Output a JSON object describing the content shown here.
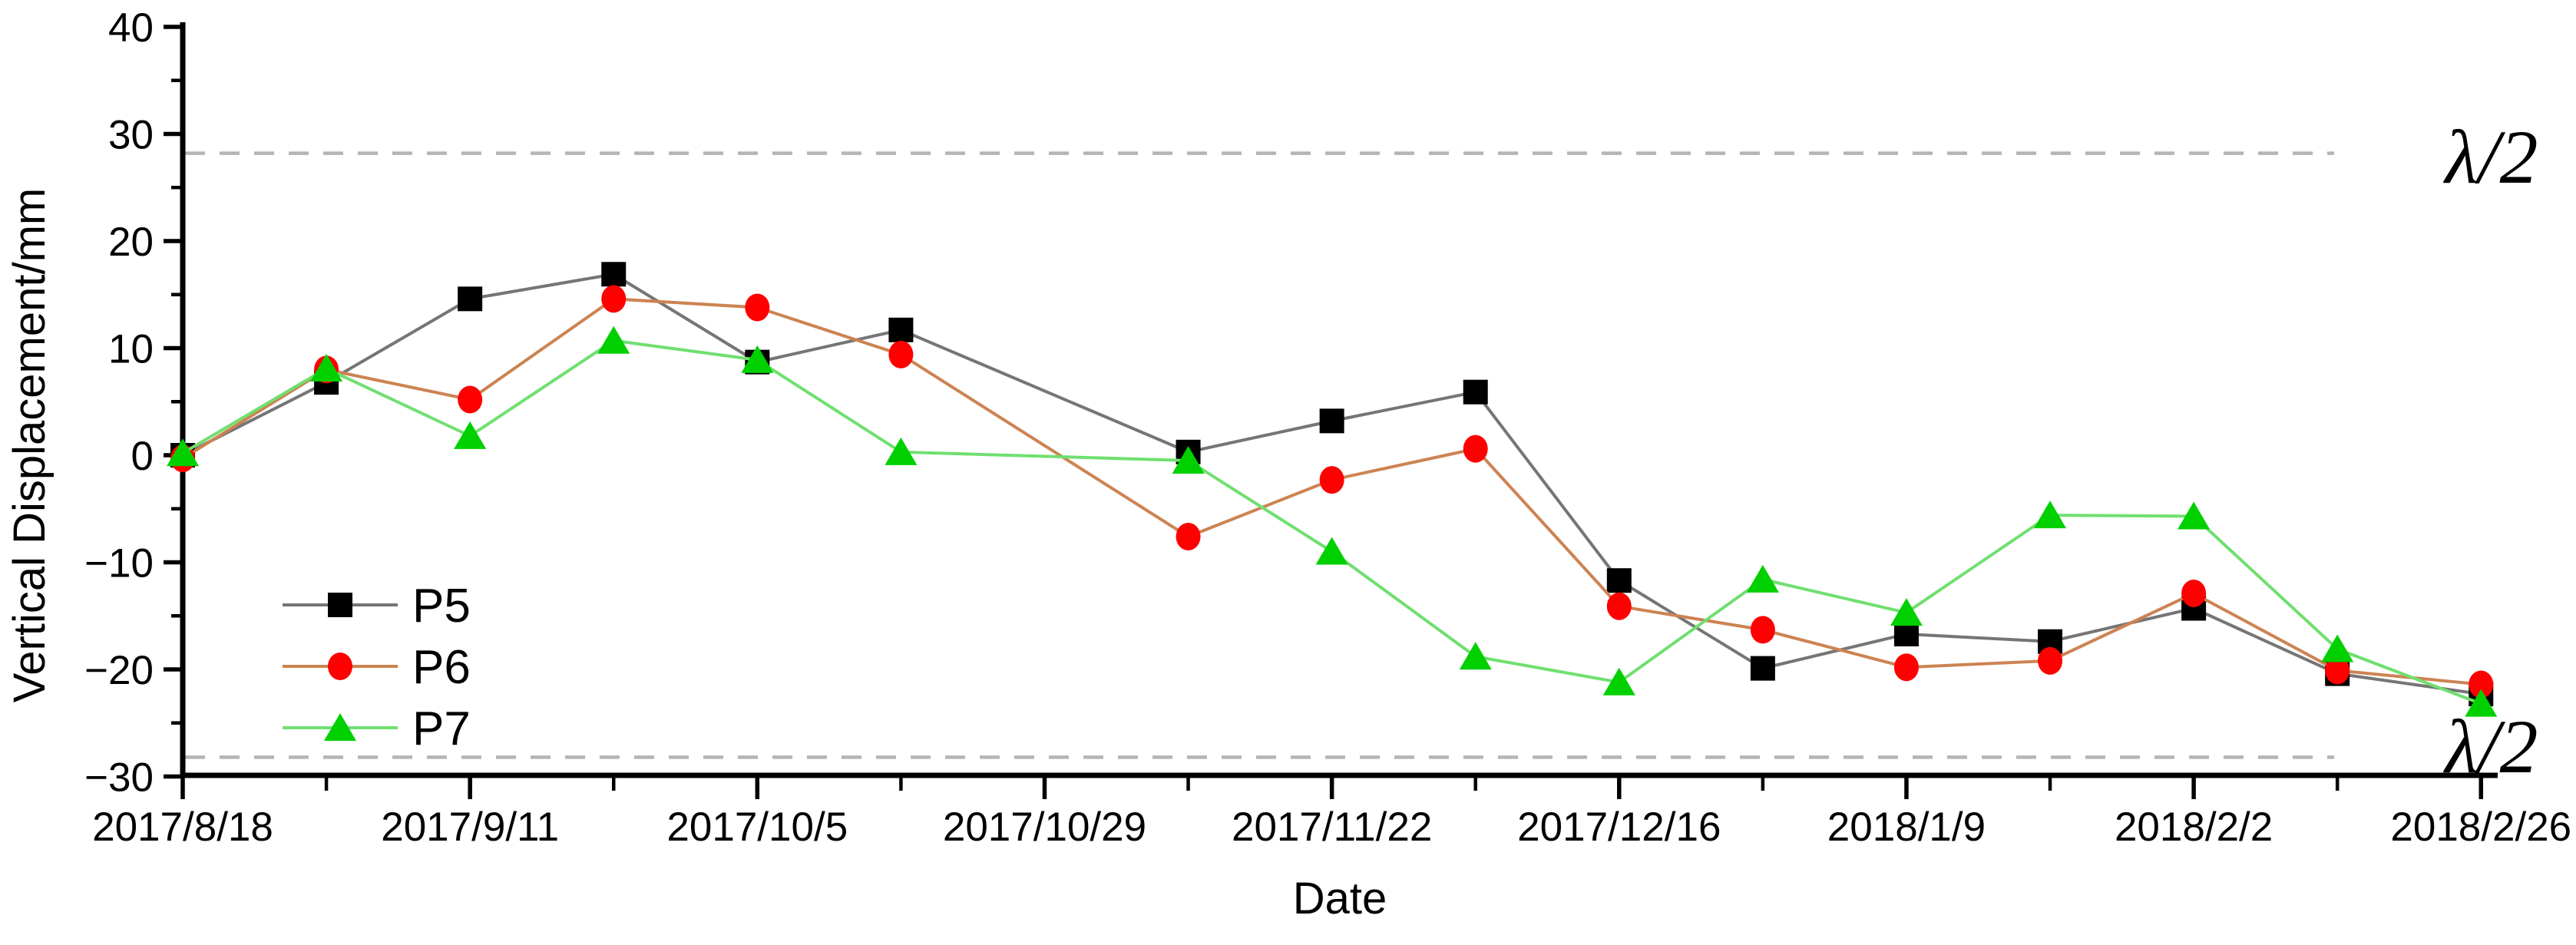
{
  "figure": {
    "background": "#ffffff"
  },
  "chart_data": {
    "type": "line",
    "title": "",
    "xlabel": "Date",
    "ylabel": "Vertical Displacement/mm",
    "ylim": [
      -30,
      40
    ],
    "grid": false,
    "legend_position": "inside-lower-left",
    "y_major_ticks": [
      40,
      30,
      20,
      10,
      0,
      -10,
      -20,
      -30
    ],
    "y_minor_ticks": [
      35,
      25,
      15,
      5,
      -5,
      -15,
      -25
    ],
    "x_major_ticks": [
      "2017/8/18",
      "2017/9/11",
      "2017/10/5",
      "2017/10/29",
      "2017/11/22",
      "2017/12/16",
      "2018/1/9",
      "2018/2/2",
      "2018/2/26"
    ],
    "x_minor_ticks": [
      "2017/8/30",
      "2017/9/23",
      "2017/10/17",
      "2017/11/10",
      "2017/12/4",
      "2017/12/28",
      "2018/1/21",
      "2018/2/14"
    ],
    "x": [
      "2017/8/18",
      "2017/8/30",
      "2017/9/11",
      "2017/9/23",
      "2017/10/5",
      "2017/10/17",
      "2017/11/10",
      "2017/11/22",
      "2017/12/4",
      "2017/12/16",
      "2017/12/28",
      "2018/1/9",
      "2018/1/21",
      "2018/2/2",
      "2018/2/14",
      "2018/2/26"
    ],
    "series": [
      {
        "name": "P5",
        "marker": "square",
        "marker_color": "#000000",
        "line_color": "#757575",
        "values": [
          0.0,
          6.8,
          14.6,
          16.9,
          8.7,
          11.7,
          0.3,
          3.2,
          5.9,
          -11.7,
          -19.9,
          -16.7,
          -17.4,
          -14.3,
          -20.4,
          -22.3
        ]
      },
      {
        "name": "P6",
        "marker": "circle",
        "marker_color": "#fe0000",
        "line_color": "#cc8352",
        "values": [
          -0.3,
          8.0,
          5.2,
          14.6,
          13.8,
          9.4,
          -7.6,
          -2.3,
          0.6,
          -14.1,
          -16.3,
          -19.8,
          -19.2,
          -12.9,
          -20.1,
          -21.4
        ]
      },
      {
        "name": "P7",
        "marker": "triangle",
        "marker_color": "#00d000",
        "line_color": "#70df70",
        "values": [
          0.2,
          8.1,
          1.8,
          10.7,
          8.9,
          0.3,
          -0.5,
          -9.0,
          -18.8,
          -21.2,
          -11.6,
          -14.7,
          -5.6,
          -5.7,
          -18.1,
          -23.2
        ]
      }
    ],
    "reference_lines": [
      {
        "value": 28.2,
        "label": "λ/2",
        "style": "dashed",
        "color": "#b5b5b5"
      },
      {
        "value": -28.2,
        "label": "λ/2",
        "style": "dashed",
        "color": "#b5b5b5"
      }
    ]
  }
}
